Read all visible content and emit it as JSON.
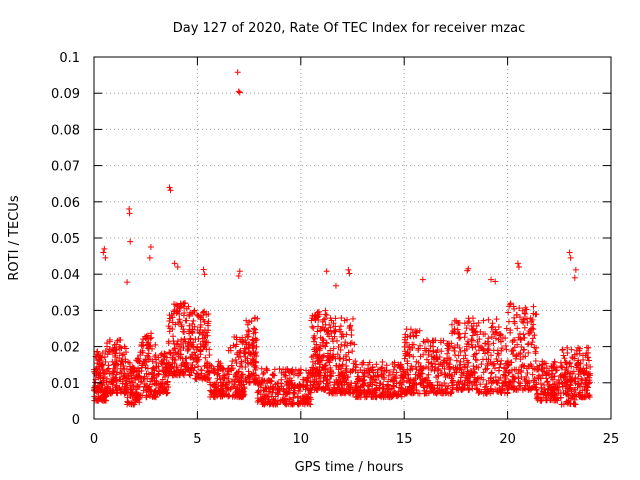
{
  "chart_data": {
    "type": "scatter",
    "title": "Day 127 of 2020, Rate Of TEC Index for receiver mzac",
    "xlabel": "GPS time / hours",
    "ylabel": "ROTI / TECUs",
    "xlim": [
      0,
      25
    ],
    "ylim": [
      0,
      0.1
    ],
    "x_ticks": [
      "0",
      "5",
      "10",
      "15",
      "20",
      "25"
    ],
    "y_ticks": [
      "0",
      "0.01",
      "0.02",
      "0.03",
      "0.04",
      "0.05",
      "0.06",
      "0.07",
      "0.08",
      "0.09",
      "0.1"
    ],
    "grid": true,
    "marker": "+",
    "series_color": "#ff0000",
    "x_span": [
      0,
      24
    ],
    "baseline_range": [
      0.005,
      0.02
    ],
    "notable_points": [
      {
        "x": 6.95,
        "y": 0.0958
      },
      {
        "x": 7.0,
        "y": 0.0905
      },
      {
        "x": 7.05,
        "y": 0.0902
      },
      {
        "x": 3.65,
        "y": 0.064
      },
      {
        "x": 3.7,
        "y": 0.0632
      },
      {
        "x": 1.7,
        "y": 0.058
      },
      {
        "x": 1.72,
        "y": 0.0568
      },
      {
        "x": 1.75,
        "y": 0.049
      },
      {
        "x": 0.5,
        "y": 0.047
      },
      {
        "x": 0.55,
        "y": 0.0445
      },
      {
        "x": 0.45,
        "y": 0.046
      },
      {
        "x": 2.75,
        "y": 0.0475
      },
      {
        "x": 2.7,
        "y": 0.0445
      },
      {
        "x": 23.0,
        "y": 0.046
      },
      {
        "x": 23.05,
        "y": 0.0445
      },
      {
        "x": 20.5,
        "y": 0.043
      },
      {
        "x": 20.55,
        "y": 0.042
      },
      {
        "x": 18.1,
        "y": 0.0415
      },
      {
        "x": 18.05,
        "y": 0.041
      },
      {
        "x": 12.3,
        "y": 0.0412
      },
      {
        "x": 12.35,
        "y": 0.0402
      },
      {
        "x": 11.25,
        "y": 0.0408
      },
      {
        "x": 3.9,
        "y": 0.043
      },
      {
        "x": 4.05,
        "y": 0.042
      },
      {
        "x": 5.3,
        "y": 0.0413
      },
      {
        "x": 5.35,
        "y": 0.04
      },
      {
        "x": 7.05,
        "y": 0.0408
      },
      {
        "x": 7.0,
        "y": 0.0395
      },
      {
        "x": 15.9,
        "y": 0.0385
      },
      {
        "x": 19.2,
        "y": 0.0385
      },
      {
        "x": 19.4,
        "y": 0.038
      },
      {
        "x": 23.3,
        "y": 0.0412
      },
      {
        "x": 23.25,
        "y": 0.039
      },
      {
        "x": 11.7,
        "y": 0.0368
      },
      {
        "x": 1.6,
        "y": 0.0378
      }
    ],
    "clusters": [
      {
        "x_from": 0.0,
        "x_to": 0.6,
        "y_from": 0.005,
        "y_to": 0.019,
        "count": 120
      },
      {
        "x_from": 0.6,
        "x_to": 1.6,
        "y_from": 0.007,
        "y_to": 0.022,
        "count": 140
      },
      {
        "x_from": 1.6,
        "x_to": 2.2,
        "y_from": 0.004,
        "y_to": 0.017,
        "count": 90
      },
      {
        "x_from": 2.2,
        "x_to": 3.0,
        "y_from": 0.006,
        "y_to": 0.024,
        "count": 110
      },
      {
        "x_from": 3.0,
        "x_to": 3.6,
        "y_from": 0.007,
        "y_to": 0.019,
        "count": 80
      },
      {
        "x_from": 3.6,
        "x_to": 4.6,
        "y_from": 0.012,
        "y_to": 0.032,
        "count": 150
      },
      {
        "x_from": 4.6,
        "x_to": 5.6,
        "y_from": 0.011,
        "y_to": 0.03,
        "count": 140
      },
      {
        "x_from": 5.6,
        "x_to": 6.5,
        "y_from": 0.006,
        "y_to": 0.016,
        "count": 100
      },
      {
        "x_from": 6.5,
        "x_to": 7.3,
        "y_from": 0.006,
        "y_to": 0.023,
        "count": 110
      },
      {
        "x_from": 7.3,
        "x_to": 7.9,
        "y_from": 0.01,
        "y_to": 0.028,
        "count": 100
      },
      {
        "x_from": 7.9,
        "x_to": 10.5,
        "y_from": 0.004,
        "y_to": 0.014,
        "count": 280
      },
      {
        "x_from": 10.5,
        "x_to": 11.3,
        "y_from": 0.008,
        "y_to": 0.03,
        "count": 150
      },
      {
        "x_from": 11.3,
        "x_to": 12.6,
        "y_from": 0.007,
        "y_to": 0.028,
        "count": 180
      },
      {
        "x_from": 12.6,
        "x_to": 15.0,
        "y_from": 0.006,
        "y_to": 0.016,
        "count": 250
      },
      {
        "x_from": 15.0,
        "x_to": 16.0,
        "y_from": 0.007,
        "y_to": 0.025,
        "count": 130
      },
      {
        "x_from": 16.0,
        "x_to": 17.3,
        "y_from": 0.007,
        "y_to": 0.022,
        "count": 150
      },
      {
        "x_from": 17.3,
        "x_to": 18.5,
        "y_from": 0.008,
        "y_to": 0.028,
        "count": 150
      },
      {
        "x_from": 18.5,
        "x_to": 20.0,
        "y_from": 0.007,
        "y_to": 0.028,
        "count": 160
      },
      {
        "x_from": 20.0,
        "x_to": 21.4,
        "y_from": 0.008,
        "y_to": 0.032,
        "count": 170
      },
      {
        "x_from": 21.4,
        "x_to": 22.6,
        "y_from": 0.005,
        "y_to": 0.016,
        "count": 140
      },
      {
        "x_from": 22.6,
        "x_to": 23.3,
        "y_from": 0.004,
        "y_to": 0.02,
        "count": 100
      },
      {
        "x_from": 23.3,
        "x_to": 24.0,
        "y_from": 0.006,
        "y_to": 0.02,
        "count": 100
      }
    ]
  }
}
